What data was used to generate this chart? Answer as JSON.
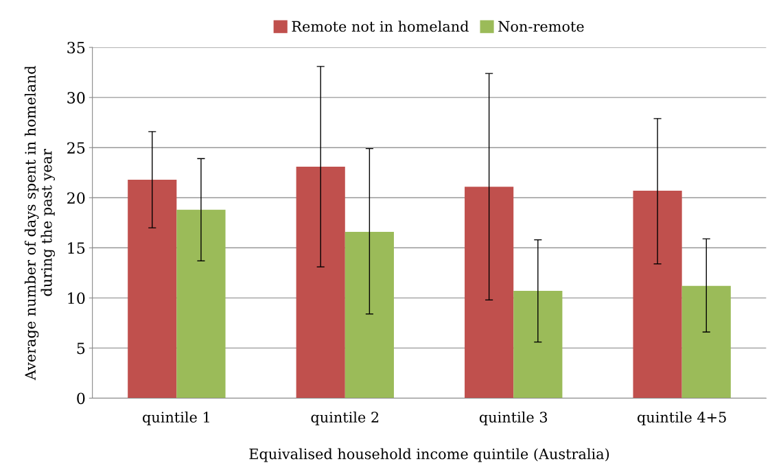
{
  "chart_data": {
    "type": "bar",
    "xlabel": "Equivalised household income quintile (Australia)",
    "ylabel": "Average number of days spent in homeland\nduring the past year",
    "categories": [
      "quintile 1",
      "quintile 2",
      "quintile 3",
      "quintile 4+5"
    ],
    "series": [
      {
        "name": "Remote not in homeland",
        "color": "#c0504d",
        "values": [
          21.8,
          23.1,
          21.1,
          20.7
        ],
        "errors": [
          [
            17.0,
            26.6
          ],
          [
            13.1,
            33.1
          ],
          [
            9.8,
            32.4
          ],
          [
            13.4,
            27.9
          ]
        ]
      },
      {
        "name": "Non-remote",
        "color": "#9bbb59",
        "values": [
          18.8,
          16.6,
          10.7,
          11.2
        ],
        "errors": [
          [
            13.7,
            23.9
          ],
          [
            8.4,
            24.9
          ],
          [
            5.6,
            15.8
          ],
          [
            6.6,
            15.9
          ]
        ]
      }
    ],
    "ylim": [
      0,
      35
    ],
    "yticks": [
      0,
      5,
      10,
      15,
      20,
      25,
      30,
      35
    ],
    "grid": "y",
    "legend": "top"
  }
}
